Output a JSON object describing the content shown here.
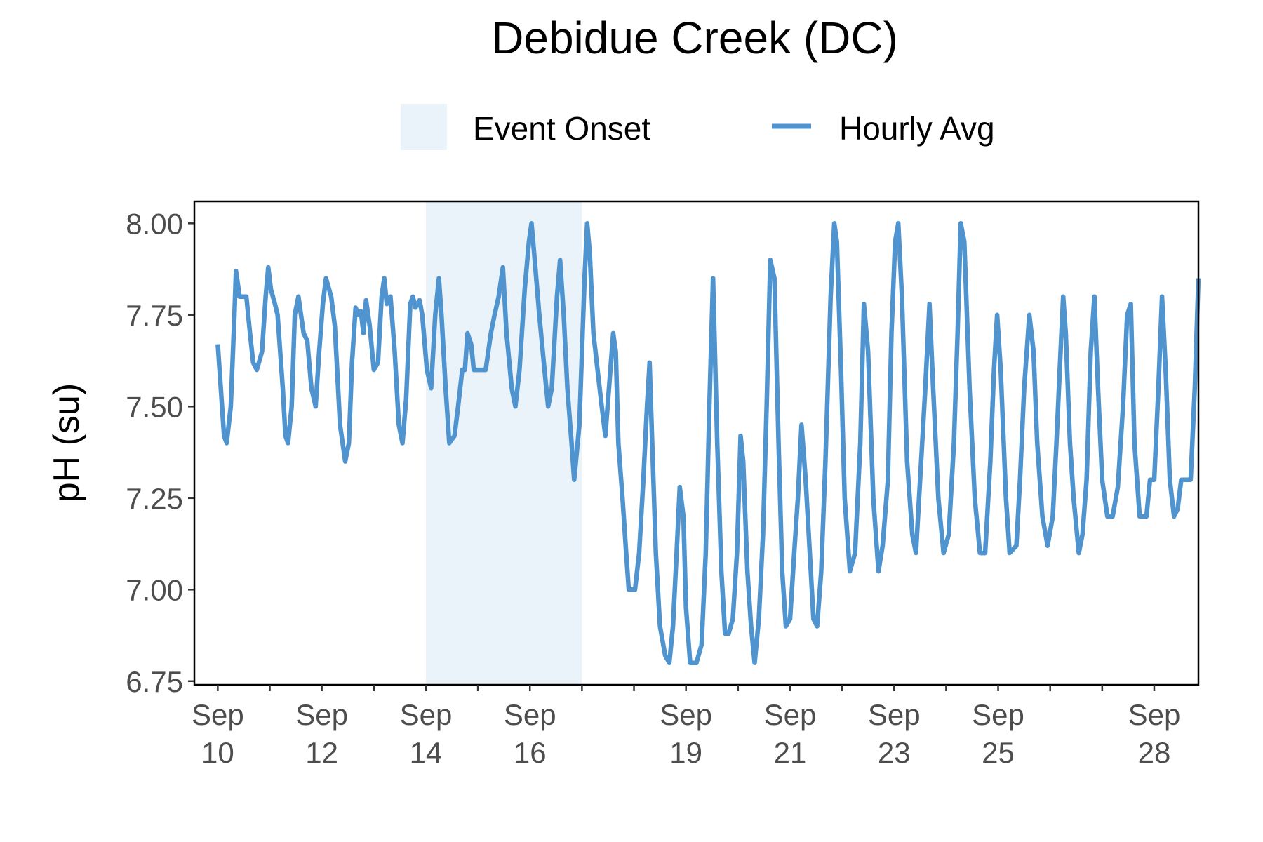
{
  "chart_data": {
    "type": "line",
    "title": "Debidue Creek (DC)",
    "xlabel": "",
    "ylabel": "pH (su)",
    "x_unit": "day of September",
    "xlim": [
      9.55,
      28.85
    ],
    "ylim": [
      6.74,
      8.06
    ],
    "yticks": [
      {
        "value": 6.75,
        "label": "6.75"
      },
      {
        "value": 7.0,
        "label": "7.00"
      },
      {
        "value": 7.25,
        "label": "7.25"
      },
      {
        "value": 7.5,
        "label": "7.50"
      },
      {
        "value": 7.75,
        "label": "7.75"
      },
      {
        "value": 8.0,
        "label": "8.00"
      }
    ],
    "xticks": [
      {
        "value": 10,
        "month": "Sep",
        "day": "10"
      },
      {
        "value": 12,
        "month": "Sep",
        "day": "12"
      },
      {
        "value": 14,
        "month": "Sep",
        "day": "14"
      },
      {
        "value": 16,
        "month": "Sep",
        "day": "16"
      },
      {
        "value": 19,
        "month": "Sep",
        "day": "19"
      },
      {
        "value": 21,
        "month": "Sep",
        "day": "21"
      },
      {
        "value": 23,
        "month": "Sep",
        "day": "23"
      },
      {
        "value": 25,
        "month": "Sep",
        "day": "25"
      },
      {
        "value": 28,
        "month": "Sep",
        "day": "28"
      }
    ],
    "minor_ticks": [
      11,
      13,
      15,
      17,
      18,
      20,
      22,
      24,
      26,
      27
    ],
    "grid": false,
    "legend": {
      "position": "top",
      "items": [
        {
          "label": "Event Onset",
          "kind": "fill",
          "color": "#ebf3fa"
        },
        {
          "label": "Hourly Avg",
          "kind": "line",
          "color": "#4f93cf"
        }
      ]
    },
    "event_onset": {
      "start": 14.0,
      "end": 17.0,
      "color": "#ebf3fa"
    },
    "series": [
      {
        "name": "Hourly Avg",
        "color": "#4f93cf",
        "points": [
          [
            10.0,
            7.67
          ],
          [
            10.12,
            7.42
          ],
          [
            10.17,
            7.4
          ],
          [
            10.25,
            7.5
          ],
          [
            10.32,
            7.75
          ],
          [
            10.35,
            7.87
          ],
          [
            10.42,
            7.8
          ],
          [
            10.55,
            7.8
          ],
          [
            10.62,
            7.7
          ],
          [
            10.68,
            7.62
          ],
          [
            10.75,
            7.6
          ],
          [
            10.85,
            7.65
          ],
          [
            10.92,
            7.8
          ],
          [
            10.97,
            7.88
          ],
          [
            11.02,
            7.82
          ],
          [
            11.1,
            7.78
          ],
          [
            11.15,
            7.75
          ],
          [
            11.25,
            7.55
          ],
          [
            11.3,
            7.42
          ],
          [
            11.35,
            7.4
          ],
          [
            11.42,
            7.5
          ],
          [
            11.48,
            7.75
          ],
          [
            11.55,
            7.8
          ],
          [
            11.6,
            7.75
          ],
          [
            11.65,
            7.7
          ],
          [
            11.72,
            7.68
          ],
          [
            11.8,
            7.55
          ],
          [
            11.88,
            7.5
          ],
          [
            11.95,
            7.65
          ],
          [
            12.02,
            7.78
          ],
          [
            12.08,
            7.85
          ],
          [
            12.18,
            7.8
          ],
          [
            12.25,
            7.72
          ],
          [
            12.35,
            7.45
          ],
          [
            12.45,
            7.35
          ],
          [
            12.52,
            7.4
          ],
          [
            12.58,
            7.62
          ],
          [
            12.65,
            7.77
          ],
          [
            12.7,
            7.75
          ],
          [
            12.75,
            7.76
          ],
          [
            12.8,
            7.7
          ],
          [
            12.85,
            7.79
          ],
          [
            12.92,
            7.72
          ],
          [
            13.0,
            7.6
          ],
          [
            13.08,
            7.62
          ],
          [
            13.15,
            7.8
          ],
          [
            13.2,
            7.85
          ],
          [
            13.25,
            7.78
          ],
          [
            13.32,
            7.8
          ],
          [
            13.4,
            7.65
          ],
          [
            13.48,
            7.45
          ],
          [
            13.55,
            7.4
          ],
          [
            13.62,
            7.52
          ],
          [
            13.7,
            7.78
          ],
          [
            13.75,
            7.8
          ],
          [
            13.8,
            7.77
          ],
          [
            13.88,
            7.79
          ],
          [
            13.93,
            7.75
          ],
          [
            14.02,
            7.6
          ],
          [
            14.1,
            7.55
          ],
          [
            14.18,
            7.75
          ],
          [
            14.25,
            7.85
          ],
          [
            14.3,
            7.75
          ],
          [
            14.38,
            7.55
          ],
          [
            14.45,
            7.4
          ],
          [
            14.55,
            7.42
          ],
          [
            14.62,
            7.5
          ],
          [
            14.7,
            7.6
          ],
          [
            14.75,
            7.6
          ],
          [
            14.8,
            7.7
          ],
          [
            14.87,
            7.67
          ],
          [
            14.92,
            7.6
          ],
          [
            15.0,
            7.6
          ],
          [
            15.15,
            7.6
          ],
          [
            15.25,
            7.7
          ],
          [
            15.32,
            7.75
          ],
          [
            15.4,
            7.8
          ],
          [
            15.48,
            7.88
          ],
          [
            15.55,
            7.7
          ],
          [
            15.65,
            7.55
          ],
          [
            15.72,
            7.5
          ],
          [
            15.8,
            7.6
          ],
          [
            15.9,
            7.82
          ],
          [
            15.98,
            7.95
          ],
          [
            16.03,
            8.0
          ],
          [
            16.08,
            7.92
          ],
          [
            16.18,
            7.75
          ],
          [
            16.28,
            7.6
          ],
          [
            16.35,
            7.5
          ],
          [
            16.42,
            7.55
          ],
          [
            16.52,
            7.8
          ],
          [
            16.58,
            7.9
          ],
          [
            16.65,
            7.75
          ],
          [
            16.72,
            7.55
          ],
          [
            16.8,
            7.4
          ],
          [
            16.85,
            7.3
          ],
          [
            16.95,
            7.45
          ],
          [
            17.05,
            7.85
          ],
          [
            17.1,
            8.0
          ],
          [
            17.15,
            7.92
          ],
          [
            17.22,
            7.7
          ],
          [
            17.3,
            7.6
          ],
          [
            17.38,
            7.5
          ],
          [
            17.45,
            7.42
          ],
          [
            17.52,
            7.55
          ],
          [
            17.6,
            7.7
          ],
          [
            17.65,
            7.65
          ],
          [
            17.7,
            7.4
          ],
          [
            17.78,
            7.25
          ],
          [
            17.85,
            7.1
          ],
          [
            17.9,
            7.0
          ],
          [
            18.02,
            7.0
          ],
          [
            18.1,
            7.1
          ],
          [
            18.18,
            7.3
          ],
          [
            18.25,
            7.5
          ],
          [
            18.3,
            7.62
          ],
          [
            18.35,
            7.4
          ],
          [
            18.42,
            7.1
          ],
          [
            18.5,
            6.9
          ],
          [
            18.6,
            6.82
          ],
          [
            18.68,
            6.8
          ],
          [
            18.75,
            6.9
          ],
          [
            18.82,
            7.1
          ],
          [
            18.88,
            7.28
          ],
          [
            18.95,
            7.2
          ],
          [
            19.0,
            6.95
          ],
          [
            19.08,
            6.8
          ],
          [
            19.2,
            6.8
          ],
          [
            19.3,
            6.85
          ],
          [
            19.38,
            7.1
          ],
          [
            19.45,
            7.5
          ],
          [
            19.52,
            7.85
          ],
          [
            19.6,
            7.4
          ],
          [
            19.68,
            7.05
          ],
          [
            19.75,
            6.88
          ],
          [
            19.82,
            6.88
          ],
          [
            19.9,
            6.92
          ],
          [
            19.98,
            7.1
          ],
          [
            20.05,
            7.42
          ],
          [
            20.1,
            7.35
          ],
          [
            20.18,
            7.05
          ],
          [
            20.25,
            6.9
          ],
          [
            20.32,
            6.8
          ],
          [
            20.4,
            6.92
          ],
          [
            20.48,
            7.15
          ],
          [
            20.55,
            7.5
          ],
          [
            20.62,
            7.9
          ],
          [
            20.7,
            7.85
          ],
          [
            20.78,
            7.4
          ],
          [
            20.85,
            7.05
          ],
          [
            20.92,
            6.9
          ],
          [
            21.0,
            6.92
          ],
          [
            21.08,
            7.1
          ],
          [
            21.15,
            7.25
          ],
          [
            21.22,
            7.45
          ],
          [
            21.3,
            7.3
          ],
          [
            21.38,
            7.1
          ],
          [
            21.45,
            6.92
          ],
          [
            21.52,
            6.9
          ],
          [
            21.6,
            7.05
          ],
          [
            21.68,
            7.35
          ],
          [
            21.78,
            7.8
          ],
          [
            21.85,
            8.0
          ],
          [
            21.9,
            7.95
          ],
          [
            21.98,
            7.6
          ],
          [
            22.05,
            7.25
          ],
          [
            22.15,
            7.05
          ],
          [
            22.25,
            7.1
          ],
          [
            22.35,
            7.4
          ],
          [
            22.42,
            7.78
          ],
          [
            22.5,
            7.65
          ],
          [
            22.6,
            7.25
          ],
          [
            22.7,
            7.05
          ],
          [
            22.78,
            7.12
          ],
          [
            22.88,
            7.3
          ],
          [
            22.95,
            7.7
          ],
          [
            23.02,
            7.95
          ],
          [
            23.08,
            8.0
          ],
          [
            23.15,
            7.8
          ],
          [
            23.25,
            7.35
          ],
          [
            23.35,
            7.15
          ],
          [
            23.42,
            7.1
          ],
          [
            23.52,
            7.35
          ],
          [
            23.6,
            7.55
          ],
          [
            23.68,
            7.78
          ],
          [
            23.75,
            7.55
          ],
          [
            23.85,
            7.25
          ],
          [
            23.95,
            7.1
          ],
          [
            24.05,
            7.15
          ],
          [
            24.15,
            7.4
          ],
          [
            24.22,
            7.7
          ],
          [
            24.28,
            8.0
          ],
          [
            24.35,
            7.95
          ],
          [
            24.45,
            7.55
          ],
          [
            24.55,
            7.25
          ],
          [
            24.65,
            7.1
          ],
          [
            24.75,
            7.1
          ],
          [
            24.85,
            7.35
          ],
          [
            24.92,
            7.6
          ],
          [
            24.98,
            7.75
          ],
          [
            25.05,
            7.6
          ],
          [
            25.15,
            7.25
          ],
          [
            25.22,
            7.1
          ],
          [
            25.35,
            7.12
          ],
          [
            25.42,
            7.3
          ],
          [
            25.5,
            7.55
          ],
          [
            25.6,
            7.75
          ],
          [
            25.68,
            7.65
          ],
          [
            25.75,
            7.4
          ],
          [
            25.85,
            7.2
          ],
          [
            25.95,
            7.12
          ],
          [
            26.05,
            7.2
          ],
          [
            26.12,
            7.4
          ],
          [
            26.2,
            7.65
          ],
          [
            26.25,
            7.8
          ],
          [
            26.3,
            7.7
          ],
          [
            26.38,
            7.4
          ],
          [
            26.45,
            7.25
          ],
          [
            26.55,
            7.1
          ],
          [
            26.62,
            7.15
          ],
          [
            26.7,
            7.3
          ],
          [
            26.78,
            7.65
          ],
          [
            26.85,
            7.8
          ],
          [
            26.92,
            7.55
          ],
          [
            27.0,
            7.3
          ],
          [
            27.1,
            7.2
          ],
          [
            27.2,
            7.2
          ],
          [
            27.3,
            7.28
          ],
          [
            27.4,
            7.5
          ],
          [
            27.48,
            7.75
          ],
          [
            27.55,
            7.78
          ],
          [
            27.62,
            7.4
          ],
          [
            27.72,
            7.2
          ],
          [
            27.85,
            7.2
          ],
          [
            27.92,
            7.3
          ],
          [
            28.0,
            7.3
          ],
          [
            28.08,
            7.55
          ],
          [
            28.15,
            7.8
          ],
          [
            28.22,
            7.6
          ],
          [
            28.3,
            7.3
          ],
          [
            28.38,
            7.2
          ],
          [
            28.45,
            7.22
          ],
          [
            28.52,
            7.3
          ],
          [
            28.6,
            7.3
          ],
          [
            28.7,
            7.3
          ],
          [
            28.78,
            7.55
          ],
          [
            28.85,
            7.85
          ]
        ]
      }
    ]
  }
}
